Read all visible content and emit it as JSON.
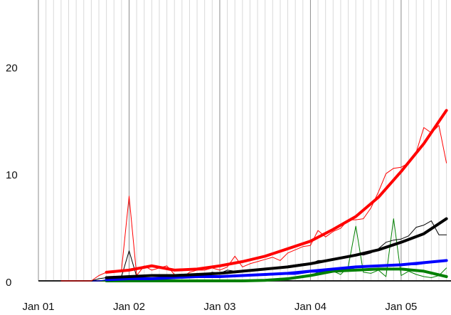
{
  "chart_data": {
    "type": "line",
    "xlim": [
      0,
      54.6
    ],
    "ylim": [
      0,
      26.2
    ],
    "yticks": [
      0,
      10,
      20
    ],
    "xticks": [
      {
        "value": 0,
        "label": "Jan 01"
      },
      {
        "value": 12,
        "label": "Jan 02"
      },
      {
        "value": 24,
        "label": "Jan 03"
      },
      {
        "value": 36,
        "label": "Jan 04"
      },
      {
        "value": 48,
        "label": "Jan 05"
      }
    ],
    "xminorticks": [
      1,
      2,
      3,
      4,
      5,
      6,
      7,
      8,
      9,
      10,
      11,
      13,
      14,
      15,
      16,
      17,
      18,
      19,
      20,
      21,
      22,
      23,
      25,
      26,
      27,
      28,
      29,
      30,
      31,
      32,
      33,
      34,
      35,
      37,
      38,
      39,
      40,
      41,
      42,
      43,
      44,
      45,
      46,
      47,
      49,
      50,
      51,
      52,
      53,
      54
    ],
    "grid": true,
    "series": [
      {
        "color": "#008000",
        "width": 1,
        "x": [
          3,
          4,
          5,
          6,
          7,
          8,
          9,
          10,
          11,
          12,
          13,
          14,
          15,
          16,
          17,
          18,
          19,
          20,
          21,
          22,
          23,
          24,
          25,
          26,
          27,
          28,
          29,
          30,
          31,
          32,
          33,
          34,
          35,
          36,
          37,
          38,
          39,
          40,
          41,
          42,
          43,
          44,
          45,
          46,
          47,
          48,
          49,
          50,
          51,
          52,
          53,
          54
        ],
        "values": [
          0,
          0,
          0,
          0,
          0,
          0,
          0,
          0,
          0,
          0,
          0,
          0,
          0,
          0,
          0,
          0,
          0,
          0,
          0,
          0,
          0,
          0,
          0,
          0,
          0,
          0,
          0,
          0,
          0.1,
          0.2,
          0.3,
          0.3,
          0.4,
          0.5,
          0.8,
          0.9,
          0.9,
          0.6,
          1.3,
          5.1,
          0.8,
          0.7,
          1.0,
          0.4,
          5.8,
          0.5,
          0.9,
          0.6,
          0.4,
          0.3,
          0.5,
          1.2
        ]
      },
      {
        "color": "#0000ff",
        "width": 1,
        "x": [
          3,
          4,
          5,
          6,
          7,
          8,
          9,
          10,
          11,
          12,
          13,
          14,
          15,
          16,
          17,
          18,
          19,
          20,
          21,
          22,
          23,
          24,
          25,
          26,
          27,
          28,
          29,
          30,
          31,
          32,
          33,
          34,
          35,
          36,
          37,
          38,
          39,
          40,
          41,
          42,
          43,
          44,
          45,
          46,
          47,
          48,
          49,
          50,
          51,
          52,
          53,
          54
        ],
        "values": [
          0,
          0,
          0,
          0,
          0,
          0,
          0.1,
          0.1,
          0.1,
          0.2,
          0.2,
          0.2,
          0.2,
          0.2,
          0.2,
          0.3,
          0.3,
          0.3,
          0.3,
          0.3,
          0.4,
          0.4,
          0.4,
          0.4,
          0.5,
          0.5,
          0.5,
          0.5,
          0.6,
          0.6,
          0.6,
          0.6,
          0.7,
          0.8,
          0.8,
          0.9,
          1.0,
          1.0,
          1.1,
          1.2,
          1.3,
          1.3,
          1.4,
          1.4,
          1.4,
          1.4,
          1.5,
          1.5,
          1.6,
          1.7,
          1.8,
          1.9
        ]
      },
      {
        "color": "#000000",
        "width": 1,
        "x": [
          3,
          4,
          5,
          6,
          7,
          8,
          9,
          10,
          11,
          12,
          13,
          14,
          15,
          16,
          17,
          18,
          19,
          20,
          21,
          22,
          23,
          24,
          25,
          26,
          27,
          28,
          29,
          30,
          31,
          32,
          33,
          34,
          35,
          36,
          37,
          38,
          39,
          40,
          41,
          42,
          43,
          44,
          45,
          46,
          47,
          48,
          49,
          50,
          51,
          52,
          53,
          54
        ],
        "values": [
          0,
          0,
          0,
          0,
          0,
          0.2,
          0.3,
          0.3,
          0.4,
          2.8,
          0.4,
          0.5,
          0.4,
          0.5,
          0.6,
          0.4,
          0.4,
          0.5,
          0.6,
          0.6,
          0.8,
          0.7,
          1.0,
          0.9,
          0.9,
          1.0,
          1.1,
          1.1,
          1.2,
          1.2,
          1.4,
          1.5,
          1.6,
          1.6,
          1.9,
          1.9,
          2.0,
          2.1,
          2.3,
          2.5,
          2.4,
          2.6,
          3.0,
          3.6,
          3.8,
          3.9,
          4.2,
          5.0,
          5.2,
          5.6,
          4.3,
          4.3
        ]
      },
      {
        "color": "#ff0000",
        "width": 1,
        "x": [
          3,
          4,
          5,
          6,
          7,
          8,
          9,
          10,
          11,
          12,
          13,
          14,
          15,
          16,
          17,
          18,
          19,
          20,
          21,
          22,
          23,
          24,
          25,
          26,
          27,
          28,
          29,
          30,
          31,
          32,
          33,
          34,
          35,
          36,
          37,
          38,
          39,
          40,
          41,
          42,
          43,
          44,
          45,
          46,
          47,
          48,
          49,
          50,
          51,
          52,
          53,
          54
        ],
        "values": [
          0,
          0,
          0,
          0,
          0,
          0.5,
          0.8,
          0.9,
          1.0,
          7.9,
          0.5,
          1.4,
          1.0,
          1.2,
          1.4,
          0.6,
          0.3,
          0.8,
          1.0,
          1.0,
          1.2,
          1.0,
          1.3,
          2.3,
          1.3,
          1.6,
          1.8,
          2.0,
          2.2,
          1.9,
          2.6,
          2.9,
          3.2,
          3.3,
          4.7,
          4.1,
          4.6,
          4.9,
          5.7,
          5.7,
          5.8,
          6.8,
          8.3,
          10.0,
          10.5,
          10.6,
          11.0,
          12.0,
          14.3,
          13.8,
          14.5,
          11.0
        ]
      },
      {
        "color": "#008000",
        "width": 4,
        "x": [
          9,
          12,
          15,
          18,
          21,
          24,
          27,
          30,
          33,
          36,
          39,
          42,
          45,
          48,
          51,
          54
        ],
        "values": [
          0,
          0,
          0,
          0,
          0,
          0,
          0,
          0.05,
          0.2,
          0.5,
          0.9,
          1.0,
          1.1,
          1.1,
          0.9,
          0.4
        ]
      },
      {
        "color": "#0000ff",
        "width": 4,
        "x": [
          9,
          12,
          15,
          18,
          21,
          24,
          27,
          30,
          33,
          36,
          39,
          42,
          45,
          48,
          51,
          54
        ],
        "values": [
          0.1,
          0.2,
          0.2,
          0.3,
          0.4,
          0.4,
          0.5,
          0.6,
          0.7,
          0.9,
          1.1,
          1.3,
          1.4,
          1.5,
          1.7,
          1.9
        ]
      },
      {
        "color": "#000000",
        "width": 4,
        "x": [
          9,
          12,
          15,
          18,
          21,
          24,
          27,
          30,
          33,
          36,
          39,
          42,
          45,
          48,
          51,
          54
        ],
        "values": [
          0.3,
          0.4,
          0.5,
          0.5,
          0.6,
          0.7,
          0.9,
          1.1,
          1.3,
          1.6,
          2.0,
          2.4,
          2.9,
          3.6,
          4.4,
          5.8
        ]
      },
      {
        "color": "#ff0000",
        "width": 4,
        "x": [
          9,
          12,
          15,
          18,
          21,
          24,
          27,
          30,
          33,
          36,
          39,
          42,
          45,
          48,
          51,
          54
        ],
        "values": [
          0.8,
          1.0,
          1.4,
          1.0,
          1.1,
          1.4,
          1.8,
          2.3,
          3.0,
          3.7,
          4.8,
          6.0,
          7.8,
          10.2,
          12.8,
          15.9
        ]
      }
    ]
  }
}
